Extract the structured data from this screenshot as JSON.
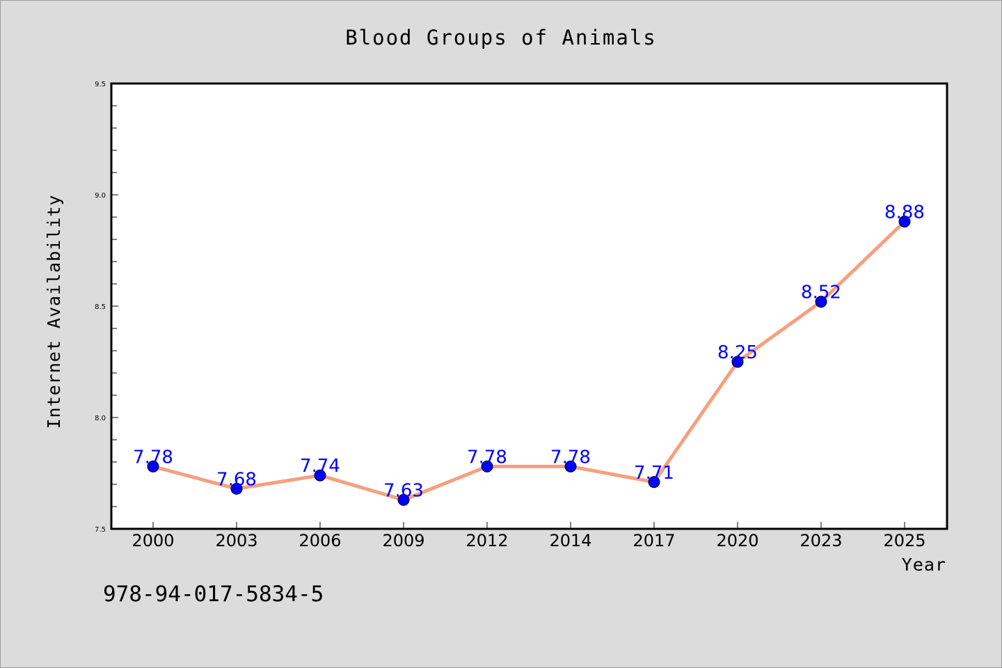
{
  "chart_data": {
    "type": "line",
    "title": "Blood Groups of Animals",
    "xlabel": "Year",
    "ylabel": "Internet Availability",
    "categories": [
      "2000",
      "2003",
      "2006",
      "2009",
      "2012",
      "2014",
      "2017",
      "2020",
      "2023",
      "2025"
    ],
    "series": [
      {
        "values": [
          7.78,
          7.68,
          7.74,
          7.63,
          7.78,
          7.78,
          7.71,
          8.25,
          8.52,
          8.88
        ]
      }
    ],
    "data_labels": [
      "7.78",
      "7.68",
      "7.74",
      "7.63",
      "7.78",
      "7.78",
      "7.71",
      "8.25",
      "8.52",
      "8.88"
    ],
    "ylim": [
      7.5,
      9.5
    ],
    "yticks": [
      "7.5",
      "8.0",
      "8.5",
      "9.0",
      "9.5"
    ],
    "ytick_values": [
      7.5,
      8.0,
      8.5,
      9.0,
      9.5
    ],
    "minor_ytick_step": 0.1,
    "grid": false,
    "legend": "none",
    "colors": {
      "line": "#f5a07e",
      "marker": "#0000ff",
      "labels": "#0000ff",
      "plot_bg": "#ffffff",
      "figure_bg": "#dcdcdc"
    }
  },
  "annotation": "978-94-017-5834-5"
}
